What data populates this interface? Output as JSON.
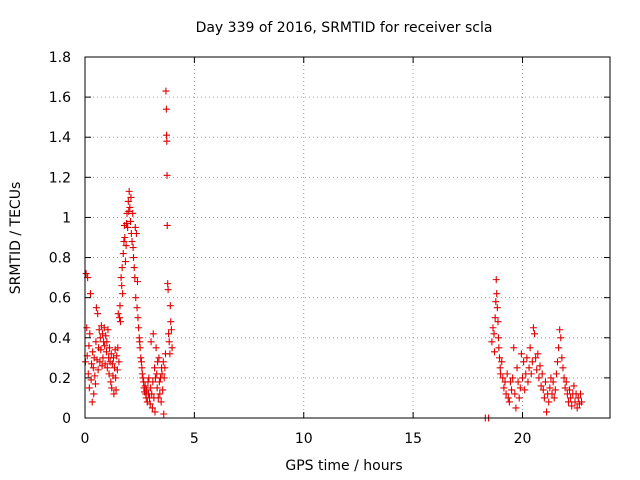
{
  "chart_data": {
    "type": "scatter",
    "title": "Day 339 of 2016, SRMTID for receiver scla",
    "xlabel": "GPS time / hours",
    "ylabel": "SRMTID / TECUs",
    "xlim": [
      0,
      24
    ],
    "ylim": [
      0,
      1.8
    ],
    "xticks": [
      0,
      5,
      10,
      15,
      20
    ],
    "yticks": [
      0,
      0.2,
      0.4,
      0.6,
      0.8,
      1,
      1.2,
      1.4,
      1.6,
      1.8
    ],
    "ytick_labels": [
      "0",
      "0.2",
      "0.4",
      "0.6",
      "0.8",
      "1",
      "1.2",
      "1.4",
      "1.6",
      "1.8"
    ],
    "grid": true,
    "marker": "+",
    "color": "#e00000",
    "series": [
      {
        "name": "SRMTID",
        "points": [
          [
            0.02,
            0.28
          ],
          [
            0.05,
            0.72
          ],
          [
            0.08,
            0.45
          ],
          [
            0.1,
            0.31
          ],
          [
            0.12,
            0.7
          ],
          [
            0.15,
            0.22
          ],
          [
            0.18,
            0.36
          ],
          [
            0.2,
            0.15
          ],
          [
            0.22,
            0.42
          ],
          [
            0.25,
            0.62
          ],
          [
            0.28,
            0.19
          ],
          [
            0.3,
            0.27
          ],
          [
            0.33,
            0.08
          ],
          [
            0.35,
            0.33
          ],
          [
            0.38,
            0.25
          ],
          [
            0.4,
            0.12
          ],
          [
            0.42,
            0.3
          ],
          [
            0.45,
            0.21
          ],
          [
            0.48,
            0.17
          ],
          [
            0.5,
            0.38
          ],
          [
            0.52,
            0.55
          ],
          [
            0.55,
            0.29
          ],
          [
            0.58,
            0.52
          ],
          [
            0.6,
            0.24
          ],
          [
            0.62,
            0.35
          ],
          [
            0.65,
            0.44
          ],
          [
            0.68,
            0.28
          ],
          [
            0.7,
            0.4
          ],
          [
            0.72,
            0.34
          ],
          [
            0.75,
            0.46
          ],
          [
            0.78,
            0.26
          ],
          [
            0.8,
            0.42
          ],
          [
            0.82,
            0.3
          ],
          [
            0.85,
            0.38
          ],
          [
            0.88,
            0.45
          ],
          [
            0.9,
            0.36
          ],
          [
            0.92,
            0.27
          ],
          [
            0.95,
            0.41
          ],
          [
            0.98,
            0.33
          ],
          [
            1.0,
            0.38
          ],
          [
            1.02,
            0.25
          ],
          [
            1.05,
            0.44
          ],
          [
            1.08,
            0.3
          ],
          [
            1.1,
            0.22
          ],
          [
            1.12,
            0.35
          ],
          [
            1.15,
            0.28
          ],
          [
            1.18,
            0.18
          ],
          [
            1.2,
            0.32
          ],
          [
            1.22,
            0.15
          ],
          [
            1.25,
            0.27
          ],
          [
            1.28,
            0.21
          ],
          [
            1.3,
            0.3
          ],
          [
            1.32,
            0.12
          ],
          [
            1.35,
            0.25
          ],
          [
            1.38,
            0.34
          ],
          [
            1.4,
            0.2
          ],
          [
            1.42,
            0.14
          ],
          [
            1.45,
            0.31
          ],
          [
            1.48,
            0.24
          ],
          [
            1.5,
            0.35
          ],
          [
            1.52,
            0.52
          ],
          [
            1.55,
            0.28
          ],
          [
            1.58,
            0.5
          ],
          [
            1.6,
            0.56
          ],
          [
            1.62,
            0.48
          ],
          [
            1.65,
            0.7
          ],
          [
            1.68,
            0.66
          ],
          [
            1.7,
            0.75
          ],
          [
            1.72,
            0.62
          ],
          [
            1.75,
            0.82
          ],
          [
            1.78,
            0.88
          ],
          [
            1.8,
            0.96
          ],
          [
            1.82,
            0.9
          ],
          [
            1.85,
            0.78
          ],
          [
            1.88,
            0.86
          ],
          [
            1.9,
            0.97
          ],
          [
            1.92,
            1.02
          ],
          [
            1.95,
            0.95
          ],
          [
            1.98,
            1.08
          ],
          [
            2.0,
            1.03
          ],
          [
            2.02,
            1.13
          ],
          [
            2.05,
            1.05
          ],
          [
            2.08,
            0.98
          ],
          [
            2.1,
            1.1
          ],
          [
            2.12,
            0.92
          ],
          [
            2.15,
            0.88
          ],
          [
            2.18,
            1.02
          ],
          [
            2.2,
            0.85
          ],
          [
            2.22,
            0.8
          ],
          [
            2.25,
            0.75
          ],
          [
            2.28,
            0.7
          ],
          [
            2.3,
            0.95
          ],
          [
            2.32,
            0.6
          ],
          [
            2.35,
            0.92
          ],
          [
            2.38,
            0.55
          ],
          [
            2.4,
            0.68
          ],
          [
            2.42,
            0.5
          ],
          [
            2.45,
            0.45
          ],
          [
            2.48,
            0.4
          ],
          [
            2.5,
            0.38
          ],
          [
            2.52,
            0.35
          ],
          [
            2.55,
            0.3
          ],
          [
            2.58,
            0.28
          ],
          [
            2.6,
            0.25
          ],
          [
            2.62,
            0.22
          ],
          [
            2.65,
            0.2
          ],
          [
            2.68,
            0.18
          ],
          [
            2.7,
            0.15
          ],
          [
            2.72,
            0.13
          ],
          [
            2.75,
            0.16
          ],
          [
            2.78,
            0.12
          ],
          [
            2.8,
            0.1
          ],
          [
            2.82,
            0.14
          ],
          [
            2.85,
            0.08
          ],
          [
            2.88,
            0.18
          ],
          [
            2.9,
            0.12
          ],
          [
            2.92,
            0.2
          ],
          [
            2.95,
            0.1
          ],
          [
            2.98,
            0.07
          ],
          [
            3.0,
            0.15
          ],
          [
            3.02,
            0.38
          ],
          [
            3.05,
            0.12
          ],
          [
            3.08,
            0.05
          ],
          [
            3.1,
            0.18
          ],
          [
            3.12,
            0.42
          ],
          [
            3.15,
            0.1
          ],
          [
            3.18,
            0.25
          ],
          [
            3.2,
            0.03
          ],
          [
            3.22,
            0.2
          ],
          [
            3.25,
            0.35
          ],
          [
            3.28,
            0.22
          ],
          [
            3.3,
            0.15
          ],
          [
            3.32,
            0.28
          ],
          [
            3.35,
            0.1
          ],
          [
            3.38,
            0.3
          ],
          [
            3.4,
            0.18
          ],
          [
            3.42,
            0.12
          ],
          [
            3.45,
            0.2
          ],
          [
            3.48,
            0.08
          ],
          [
            3.5,
            0.25
          ],
          [
            3.52,
            0.22
          ],
          [
            3.55,
            0.14
          ],
          [
            3.58,
            0.28
          ],
          [
            3.6,
            0.02
          ],
          [
            3.62,
            0.2
          ],
          [
            3.65,
            0.25
          ],
          [
            3.68,
            0.32
          ],
          [
            3.7,
            1.63
          ],
          [
            3.72,
            1.54
          ],
          [
            3.73,
            1.41
          ],
          [
            3.74,
            1.38
          ],
          [
            3.75,
            1.21
          ],
          [
            3.76,
            0.96
          ],
          [
            3.78,
            0.67
          ],
          [
            3.8,
            0.64
          ],
          [
            3.82,
            0.42
          ],
          [
            3.85,
            0.38
          ],
          [
            3.88,
            0.32
          ],
          [
            3.9,
            0.56
          ],
          [
            3.92,
            0.48
          ],
          [
            3.95,
            0.44
          ],
          [
            3.98,
            0.35
          ],
          [
            18.3,
            0
          ],
          [
            18.45,
            0
          ],
          [
            18.6,
            0.38
          ],
          [
            18.65,
            0.45
          ],
          [
            18.7,
            0.42
          ],
          [
            18.72,
            0.33
          ],
          [
            18.75,
            0.5
          ],
          [
            18.78,
            0.58
          ],
          [
            18.8,
            0.69
          ],
          [
            18.82,
            0.62
          ],
          [
            18.85,
            0.55
          ],
          [
            18.88,
            0.48
          ],
          [
            18.9,
            0.4
          ],
          [
            18.92,
            0.35
          ],
          [
            18.95,
            0.3
          ],
          [
            18.98,
            0.25
          ],
          [
            19.0,
            0.22
          ],
          [
            19.05,
            0.28
          ],
          [
            19.1,
            0.2
          ],
          [
            19.15,
            0.15
          ],
          [
            19.2,
            0.18
          ],
          [
            19.25,
            0.12
          ],
          [
            19.3,
            0.22
          ],
          [
            19.35,
            0.1
          ],
          [
            19.4,
            0.08
          ],
          [
            19.45,
            0.18
          ],
          [
            19.5,
            0.14
          ],
          [
            19.55,
            0.2
          ],
          [
            19.6,
            0.35
          ],
          [
            19.65,
            0.12
          ],
          [
            19.7,
            0.05
          ],
          [
            19.75,
            0.25
          ],
          [
            19.8,
            0.18
          ],
          [
            19.85,
            0.1
          ],
          [
            19.9,
            0.15
          ],
          [
            19.95,
            0.32
          ],
          [
            20.0,
            0.2
          ],
          [
            20.05,
            0.28
          ],
          [
            20.1,
            0.14
          ],
          [
            20.15,
            0.22
          ],
          [
            20.2,
            0.3
          ],
          [
            20.25,
            0.18
          ],
          [
            20.3,
            0.25
          ],
          [
            20.35,
            0.35
          ],
          [
            20.4,
            0.22
          ],
          [
            20.45,
            0.28
          ],
          [
            20.5,
            0.45
          ],
          [
            20.55,
            0.42
          ],
          [
            20.6,
            0.3
          ],
          [
            20.65,
            0.24
          ],
          [
            20.7,
            0.32
          ],
          [
            20.75,
            0.2
          ],
          [
            20.8,
            0.26
          ],
          [
            20.85,
            0.16
          ],
          [
            20.9,
            0.22
          ],
          [
            20.95,
            0.14
          ],
          [
            21.0,
            0.1
          ],
          [
            21.05,
            0.18
          ],
          [
            21.1,
            0.03
          ],
          [
            21.15,
            0.12
          ],
          [
            21.2,
            0.08
          ],
          [
            21.25,
            0.15
          ],
          [
            21.3,
            0.2
          ],
          [
            21.35,
            0.12
          ],
          [
            21.4,
            0.18
          ],
          [
            21.45,
            0.1
          ],
          [
            21.5,
            0.14
          ],
          [
            21.55,
            0.22
          ],
          [
            21.6,
            0.28
          ],
          [
            21.65,
            0.35
          ],
          [
            21.7,
            0.44
          ],
          [
            21.75,
            0.4
          ],
          [
            21.8,
            0.3
          ],
          [
            21.85,
            0.25
          ],
          [
            21.9,
            0.2
          ],
          [
            21.95,
            0.15
          ],
          [
            22.0,
            0.18
          ],
          [
            22.05,
            0.12
          ],
          [
            22.1,
            0.08
          ],
          [
            22.15,
            0.14
          ],
          [
            22.2,
            0.1
          ],
          [
            22.25,
            0.06
          ],
          [
            22.3,
            0.12
          ],
          [
            22.35,
            0.16
          ],
          [
            22.4,
            0.08
          ],
          [
            22.45,
            0.12
          ],
          [
            22.5,
            0.05
          ],
          [
            22.55,
            0.1
          ],
          [
            22.6,
            0.07
          ],
          [
            22.65,
            0.12
          ],
          [
            22.7,
            0.08
          ]
        ]
      }
    ]
  }
}
